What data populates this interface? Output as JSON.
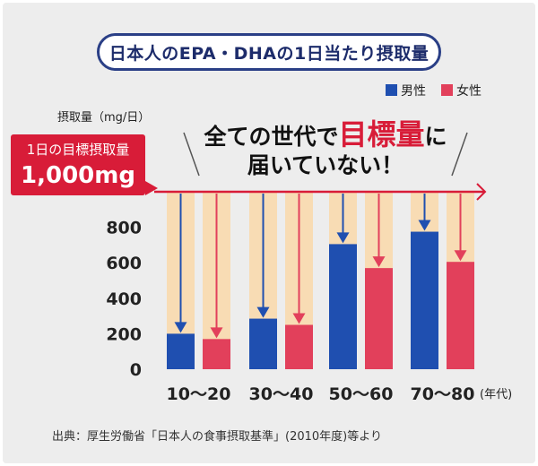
{
  "title": "日本人のEPA・DHAの1日当たり摂取量",
  "target": {
    "label": "1日の目標摂取量",
    "value": "1,000mg"
  },
  "headline": {
    "part1": "全ての世代で",
    "highlight": "目標量",
    "part2": "に",
    "line2": "届いていない！"
  },
  "source": "出典：厚生労働省「日本人の食事摂取基準」(2010年度)等より",
  "colors": {
    "male": "#1f4fb0",
    "female": "#e2405b",
    "target_band": "#f8dcb4",
    "target_line": "#d81c38"
  },
  "chart_data": {
    "type": "bar",
    "categories": [
      "10～20",
      "30～40",
      "50～60",
      "70～80"
    ],
    "series": [
      {
        "name": "男性",
        "values": [
          200,
          285,
          705,
          775
        ]
      },
      {
        "name": "女性",
        "values": [
          170,
          250,
          570,
          605
        ]
      }
    ],
    "target_line": 1000,
    "ylabel": "摂取量（mg/日）",
    "xlabel": "(年代)",
    "ylim": [
      0,
      1000
    ],
    "yticks": [
      0,
      200,
      400,
      600,
      800
    ],
    "legend_position": "top-right",
    "grid": false
  }
}
